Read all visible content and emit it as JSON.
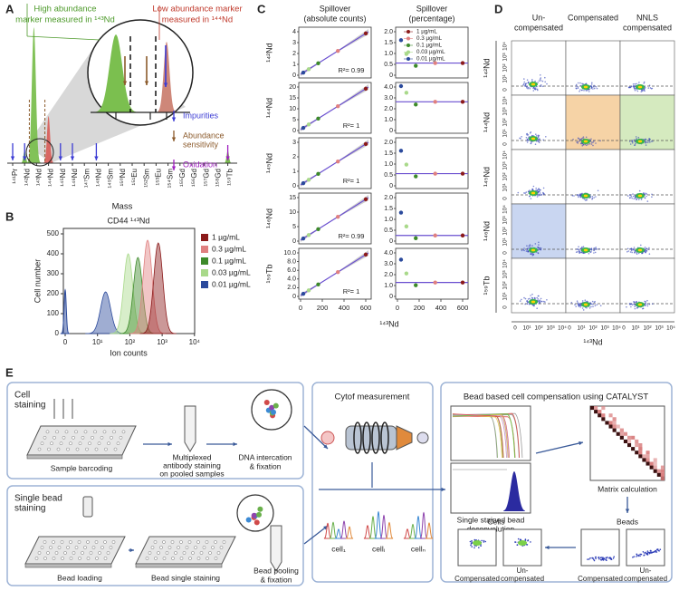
{
  "panel_labels": [
    "A",
    "B",
    "C",
    "D",
    "E"
  ],
  "a": {
    "callout_high": [
      "High abundance",
      "marker measured in ¹⁴³Nd"
    ],
    "callout_low": [
      "Low abundance marker",
      "measured in ¹⁴⁴Nd"
    ],
    "masses": [
      "¹⁴¹Pr",
      "¹⁴²Nd",
      "¹⁴³Nd",
      "¹⁴⁴Nd",
      "¹⁴⁵Nd",
      "¹⁴⁶Nd",
      "¹⁴⁷Sm",
      "¹⁴⁸Nd",
      "¹⁴⁹Sm",
      "¹⁵⁰Nd",
      "¹⁵¹Eu",
      "¹⁵²Sm",
      "¹⁵³Eu",
      "¹⁵⁴Sm",
      "¹⁵⁵Gd",
      "¹⁵⁶Gd",
      "¹⁵⁷Gd",
      "¹⁵⁸Gd",
      "¹⁵⁹Tb"
    ],
    "x_label": "Mass",
    "legend": [
      {
        "lines": [
          "Impurities"
        ],
        "color": "#3b3bd4"
      },
      {
        "lines": [
          "Abundance",
          "sensitivity"
        ],
        "color": "#8b5a2b"
      },
      {
        "lines": [
          "Oxidation"
        ],
        "color": "#a020c0"
      }
    ]
  },
  "b": {
    "title": "CD44 ¹⁴³Nd",
    "y_label": "Cell number",
    "x_label": "Ion counts",
    "yticks": [
      0,
      100,
      200,
      300,
      400,
      500
    ],
    "xticks": [
      "0",
      "10¹",
      "10²",
      "10³",
      "10⁴"
    ],
    "legend": [
      {
        "name": "1 µg/mL",
        "color": "#8b1a1a"
      },
      {
        "name": "0.3 µg/mL",
        "color": "#e08080"
      },
      {
        "name": "0.1 µg/mL",
        "color": "#3d8a2a"
      },
      {
        "name": "0.03 µg/mL",
        "color": "#a9d98a"
      },
      {
        "name": "0.01 µg/mL",
        "color": "#2b4a9c"
      }
    ]
  },
  "c": {
    "col_titles": [
      [
        "Spillover",
        "(absolute counts)"
      ],
      [
        "Spillover",
        "(percentage)"
      ]
    ],
    "rows": [
      {
        "label": "¹⁴²Nd",
        "left_ticks": [
          "0",
          "1",
          "2",
          "3",
          "4"
        ],
        "right_ticks": [
          "0",
          "0.5",
          "1.0",
          "1.5",
          "2.0"
        ],
        "r2": "R²= 0.99"
      },
      {
        "label": "¹⁴⁴Nd",
        "left_ticks": [
          "0",
          "5",
          "10",
          "15",
          "20"
        ],
        "right_ticks": [
          "0",
          "1.0",
          "2.0",
          "3.0",
          "4.0"
        ],
        "r2": "R²= 1"
      },
      {
        "label": "¹⁴⁵Nd",
        "left_ticks": [
          "0",
          "1",
          "2",
          "3"
        ],
        "right_ticks": [
          "0",
          "0.5",
          "1.0",
          "1.5",
          "2.0"
        ],
        "r2": "R²= 1"
      },
      {
        "label": "¹⁴⁶Nd",
        "left_ticks": [
          "0",
          "5",
          "10",
          "15"
        ],
        "right_ticks": [
          "0",
          "0.5",
          "1.0",
          "1.5",
          "2.0"
        ],
        "r2": "R²= 0.99"
      },
      {
        "label": "¹⁵⁹Tb",
        "left_ticks": [
          "0",
          "2.0",
          "4.0",
          "6.0",
          "8.0",
          "10.0"
        ],
        "right_ticks": [
          "0",
          "1.0",
          "2.0",
          "3.0",
          "4.0"
        ],
        "r2": "R²= 1"
      }
    ],
    "xticks": [
      "0",
      "200",
      "400",
      "600"
    ],
    "x_label": "¹⁴³Nd"
  },
  "d": {
    "col_titles": [
      [
        "Un-",
        "compensated"
      ],
      [
        "Compensated"
      ],
      [
        "NNLS",
        "compensated"
      ]
    ],
    "rows": [
      "¹⁴²Nd",
      "¹⁴⁴Nd",
      "¹⁴⁵Nd",
      "¹⁴⁶Nd",
      "¹⁵⁹Tb"
    ],
    "ticks": [
      "0",
      "10¹",
      "10²",
      "10³",
      "10⁴"
    ],
    "x_label": "¹⁴³Nd"
  },
  "e": {
    "cell_staining": {
      "title": [
        "Cell",
        "staining"
      ],
      "steps": [
        [
          "Sample barcoding"
        ],
        [
          "Multiplexed",
          "antibody staining",
          "on pooled samples"
        ],
        [
          "DNA intercation",
          "& fixation"
        ]
      ]
    },
    "bead_staining": {
      "title": [
        "Single bead",
        "staining"
      ],
      "steps": [
        [
          "Bead loading"
        ],
        [
          "Bead single staining"
        ],
        [
          "Bead pooling",
          "& fixation"
        ]
      ]
    },
    "cytof": {
      "title": "Cytof measurement",
      "cells": [
        "cell₁",
        "cellᵢ",
        "cellₙ"
      ]
    },
    "catalyst": {
      "title": "Bead based cell compensation using CATALYST",
      "deconvolution": [
        "Single stained bead",
        "deconvolution"
      ],
      "matrix": "Matrix calculation",
      "cells": "Cells",
      "beads": "Beads",
      "compensated": "Compensated",
      "uncompensated": [
        "Un-",
        "compensated"
      ]
    }
  }
}
